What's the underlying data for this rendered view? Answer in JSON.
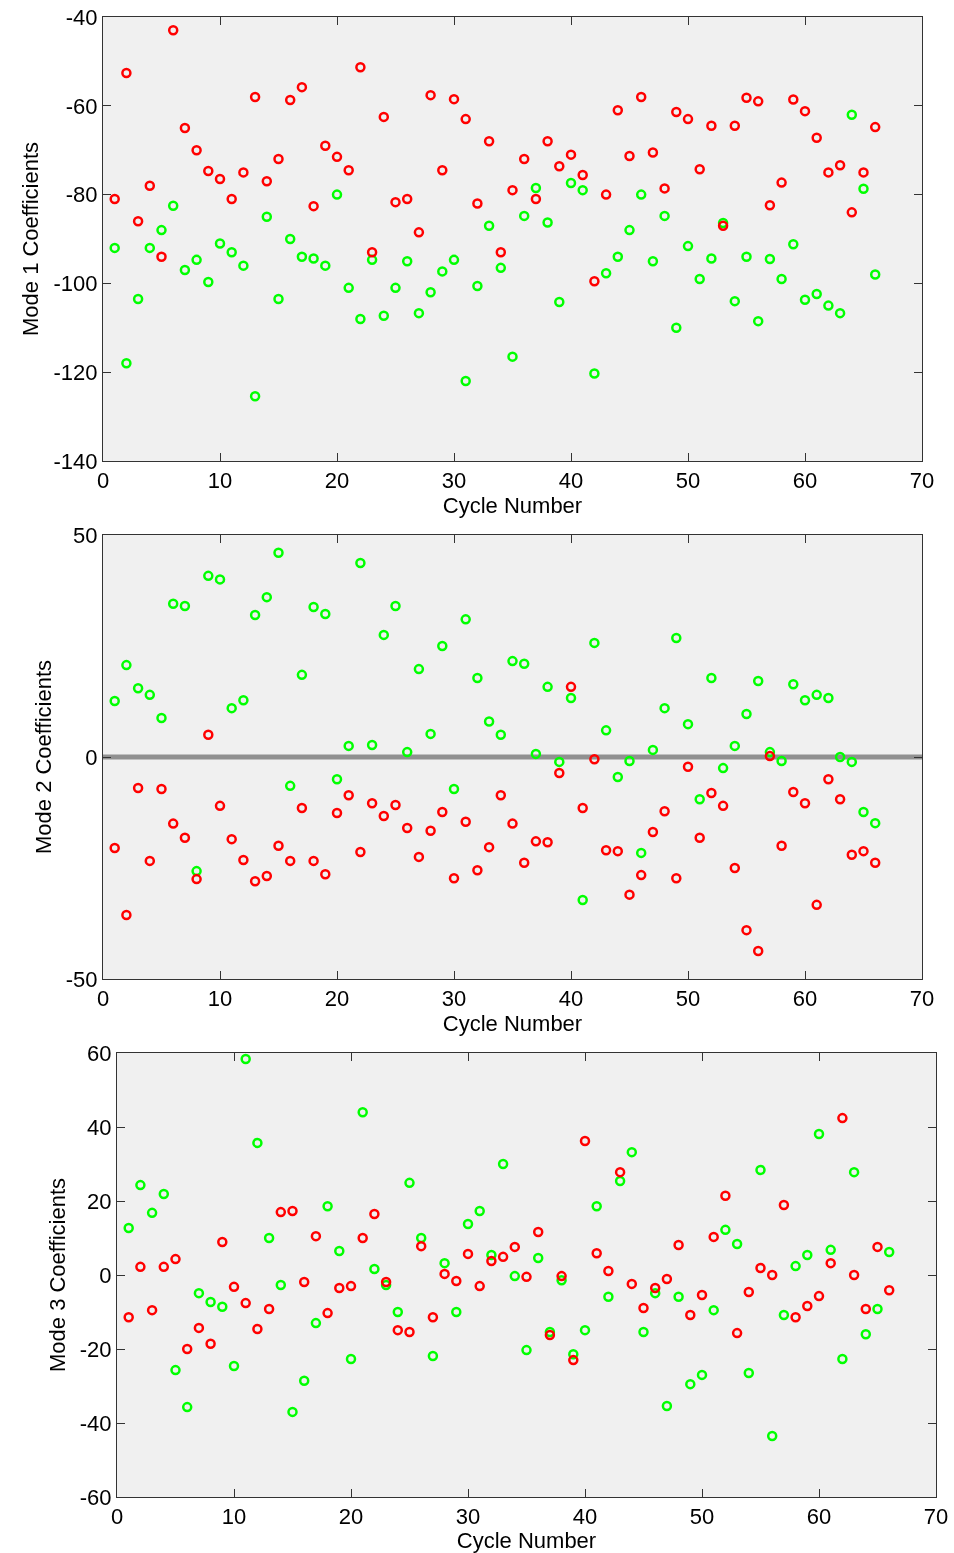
{
  "chart_data": [
    {
      "type": "scatter",
      "xlabel": "Cycle Number",
      "ylabel": "Mode 1 Coefficients",
      "marker": "circle",
      "xlim": [
        0,
        70
      ],
      "xticks": [
        0,
        10,
        20,
        30,
        40,
        50,
        60,
        70
      ],
      "ylim": [
        -140,
        -40
      ],
      "yticks": [
        -140,
        -120,
        -100,
        -80,
        -60,
        -40
      ],
      "x": [
        1,
        2,
        3,
        4,
        5,
        6,
        7,
        8,
        9,
        10,
        11,
        12,
        13,
        14,
        15,
        16,
        17,
        18,
        19,
        20,
        21,
        22,
        23,
        24,
        25,
        26,
        27,
        28,
        29,
        30,
        31,
        32,
        33,
        34,
        35,
        36,
        37,
        38,
        39,
        40,
        41,
        42,
        43,
        44,
        45,
        46,
        47,
        48,
        49,
        50,
        51,
        52,
        53,
        54,
        55,
        56,
        57,
        58,
        59,
        60,
        61,
        62,
        63,
        64,
        65,
        66
      ],
      "series": [
        {
          "color": "#00ff00",
          "values": [
            -92,
            -118,
            -103.5,
            -92,
            -88,
            -82.5,
            -97,
            -94.7,
            -99.7,
            -91,
            -93,
            -96,
            -125.4,
            -85,
            -103.5,
            -90,
            -94,
            -94.4,
            -96,
            -80,
            -101,
            -108,
            -94.7,
            -107.3,
            -101,
            -95,
            -106.7,
            -102,
            -97.3,
            -94.7,
            -122,
            -100.6,
            -87,
            -96.5,
            -116.5,
            -84.8,
            -78.5,
            -86.3,
            -104.2,
            -77.4,
            -79,
            -120.3,
            -97.7,
            -94,
            -88,
            -80,
            -95,
            -84.8,
            -110,
            -91.6,
            -99,
            -94.4,
            -86.4,
            -104,
            -94,
            -108.5,
            -94.5,
            -99,
            -91.2,
            -103.7,
            -102.4,
            -105,
            -106.7,
            -62,
            -78.7,
            -98
          ]
        },
        {
          "color": "#ff0000",
          "values": [
            -81,
            -52.6,
            -86,
            -78,
            -94,
            -43,
            -65,
            -70,
            -74.7,
            -76.5,
            -81,
            -75,
            -58,
            -77,
            -72,
            -58.7,
            -55.8,
            -82.6,
            -69,
            -71.5,
            -74.5,
            -51.3,
            -93,
            -62.5,
            -81.7,
            -81,
            -88.5,
            -57.6,
            -74.5,
            -58.5,
            -63,
            -82,
            -68,
            -93,
            -79,
            -72,
            -81,
            -68,
            -73.6,
            -71,
            -75.6,
            -99.5,
            -80,
            -61,
            -71.3,
            -58,
            -70.5,
            -78.6,
            -61.4,
            -63,
            -74.3,
            -64.5,
            -87,
            -64.5,
            -58.2,
            -59,
            -82.4,
            -77.3,
            -58.6,
            -61.2,
            -67.2,
            -75,
            -73.4,
            -84,
            -75,
            -64.8
          ]
        }
      ]
    },
    {
      "type": "scatter",
      "xlabel": "Cycle Number",
      "ylabel": "Mode 2 Coefficients",
      "marker": "circle",
      "xlim": [
        0,
        70
      ],
      "xticks": [
        0,
        10,
        20,
        30,
        40,
        50,
        60,
        70
      ],
      "ylim": [
        -50,
        50
      ],
      "yticks": [
        -50,
        0,
        50
      ],
      "ref_lines": [
        {
          "axis": "y",
          "value": 0,
          "color": "#909090"
        }
      ],
      "x": [
        1,
        2,
        3,
        4,
        5,
        6,
        7,
        8,
        9,
        10,
        11,
        12,
        13,
        14,
        15,
        16,
        17,
        18,
        19,
        20,
        21,
        22,
        23,
        24,
        25,
        26,
        27,
        28,
        29,
        30,
        31,
        32,
        33,
        34,
        35,
        36,
        37,
        38,
        39,
        40,
        41,
        42,
        43,
        44,
        45,
        46,
        47,
        48,
        49,
        50,
        51,
        52,
        53,
        54,
        55,
        56,
        57,
        58,
        59,
        60,
        61,
        62,
        63,
        64,
        65,
        66
      ],
      "series": [
        {
          "color": "#00ff00",
          "values": [
            12.6,
            20.7,
            15.5,
            14,
            8.8,
            34.5,
            34,
            -25.7,
            40.8,
            40,
            11,
            12.8,
            32,
            36,
            46,
            -6.5,
            18.5,
            33.8,
            32.2,
            -5,
            2.5,
            43.7,
            2.7,
            27.5,
            34,
            1.1,
            19.8,
            5.2,
            25,
            -7.2,
            31,
            17.8,
            8,
            5,
            21.6,
            21,
            0.7,
            15.8,
            -1.1,
            13.3,
            -32.2,
            25.7,
            6,
            -4.5,
            -0.9,
            -21.6,
            1.6,
            11,
            26.8,
            7.4,
            -9.5,
            17.8,
            -2.5,
            2.5,
            9.7,
            17.1,
            1.1,
            -0.9,
            16.4,
            12.8,
            14,
            13.3,
            0,
            -1.1,
            -12.4,
            -14.9
          ]
        },
        {
          "color": "#ff0000",
          "values": [
            -20.5,
            -35.6,
            -7,
            -23.4,
            -7.2,
            -15,
            -18.2,
            -27.5,
            5,
            -11,
            -18.5,
            -23.2,
            -28,
            -26.8,
            -20,
            -23.4,
            -11.5,
            -23.4,
            -26.4,
            -12.6,
            -8.6,
            -21.4,
            -10.4,
            -13.3,
            -10.8,
            -16,
            -22.5,
            -16.6,
            -12.4,
            -27.3,
            -14.6,
            -25.5,
            -20.3,
            -8.6,
            -15,
            -23.8,
            -19,
            -19.2,
            -3.6,
            15.8,
            -11.5,
            -0.5,
            -21,
            -21.2,
            -31,
            -26.6,
            -16.9,
            -12.2,
            -27.3,
            -2.2,
            -18.2,
            -8.1,
            -11,
            -25,
            -39,
            -43.7,
            0.2,
            -20,
            -7.9,
            -10.4,
            -33.3,
            -5,
            -9.5,
            -22,
            -21.2,
            -23.8
          ]
        }
      ]
    },
    {
      "type": "scatter",
      "xlabel": "Cycle Number",
      "ylabel": "Mode 3 Coefficients",
      "marker": "circle",
      "xlim": [
        0,
        70
      ],
      "xticks": [
        0,
        10,
        20,
        30,
        40,
        50,
        60,
        70
      ],
      "ylim": [
        -60,
        60
      ],
      "yticks": [
        -60,
        -40,
        -20,
        0,
        20,
        40,
        60
      ],
      "x": [
        1,
        2,
        3,
        4,
        5,
        6,
        7,
        8,
        9,
        10,
        11,
        12,
        13,
        14,
        15,
        16,
        17,
        18,
        19,
        20,
        21,
        22,
        23,
        24,
        25,
        26,
        27,
        28,
        29,
        30,
        31,
        32,
        33,
        34,
        35,
        36,
        37,
        38,
        39,
        40,
        41,
        42,
        43,
        44,
        45,
        46,
        47,
        48,
        49,
        50,
        51,
        52,
        53,
        54,
        55,
        56,
        57,
        58,
        59,
        60,
        61,
        62,
        63,
        64,
        65,
        66
      ],
      "series": [
        {
          "color": "#00ff00",
          "values": [
            12.7,
            24.3,
            16.8,
            21.9,
            -25.7,
            -35.7,
            -4.9,
            -7.3,
            -8.6,
            -24.6,
            58.4,
            35.7,
            10,
            -2.7,
            -37,
            -28.6,
            -13,
            18.6,
            6.5,
            -22.7,
            44,
            1.6,
            -2.7,
            -10,
            24.9,
            10,
            -21.9,
            3.2,
            -10,
            13.8,
            17.3,
            5.4,
            30,
            -0.3,
            -20.3,
            4.6,
            -15.4,
            -1.4,
            -21.4,
            -14.9,
            18.6,
            -5.9,
            25.4,
            33.2,
            -15.4,
            -4.9,
            -35.4,
            -5.9,
            -29.5,
            -27,
            -9.5,
            12.2,
            8.4,
            -26.5,
            28.4,
            -43.5,
            -10.8,
            2.4,
            5.4,
            38.1,
            6.8,
            -22.7,
            27.8,
            -16,
            -9.2,
            6.2
          ]
        },
        {
          "color": "#ff0000",
          "values": [
            -11.4,
            2.2,
            -9.5,
            2.2,
            4.3,
            -20,
            -14.3,
            -18.6,
            8.9,
            -3.2,
            -7.6,
            -14.6,
            -9.2,
            17,
            17.3,
            -1.9,
            10.5,
            -10.3,
            -3.5,
            -3,
            10,
            16.5,
            -1.9,
            -14.9,
            -15.4,
            7.8,
            -11.4,
            0.3,
            -1.6,
            5.7,
            -3,
            3.8,
            4.9,
            7.6,
            -0.5,
            11.6,
            -16.2,
            -0.3,
            -23,
            36.2,
            5.9,
            1.1,
            27.8,
            -2.4,
            -8.9,
            -3.5,
            -1.1,
            8.1,
            -10.8,
            -5.4,
            10.3,
            21.4,
            -15.7,
            -4.6,
            1.9,
            0,
            18.9,
            -11.4,
            -8.4,
            -5.7,
            3.2,
            42.4,
            0,
            -9.2,
            7.6,
            -4.1
          ]
        }
      ]
    }
  ]
}
